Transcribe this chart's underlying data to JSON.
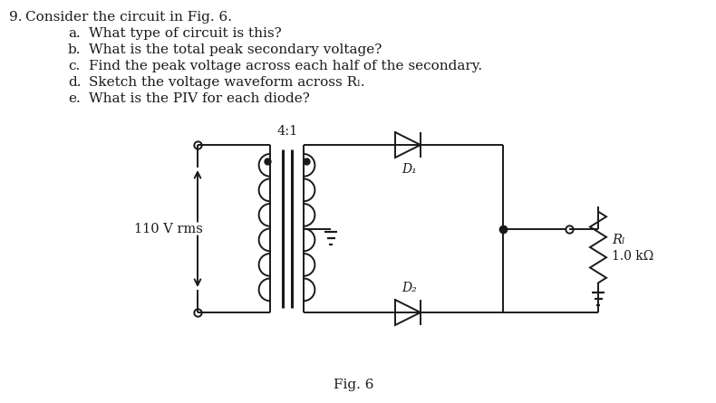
{
  "title": "9.  Consider the circuit in Fig. 6.",
  "questions": [
    "a.  What type of circuit is this?",
    "b.  What is the total peak secondary voltage?",
    "c.  Find the peak voltage across each half of the secondary.",
    "d.  Sketch the voltage waveform across Rₗ.",
    "e.  What is the PIV for each diode?"
  ],
  "fig_label": "Fig. 6",
  "transformer_ratio": "4:1",
  "source_label": "110 V rms",
  "rl_label": "Rₗ",
  "rl_value": "1.0 kΩ",
  "d1_label": "D₁",
  "d2_label": "D₂",
  "bg_color": "#ffffff",
  "text_color": "#1a1a1a",
  "line_color": "#1a1a1a",
  "lw": 1.4
}
